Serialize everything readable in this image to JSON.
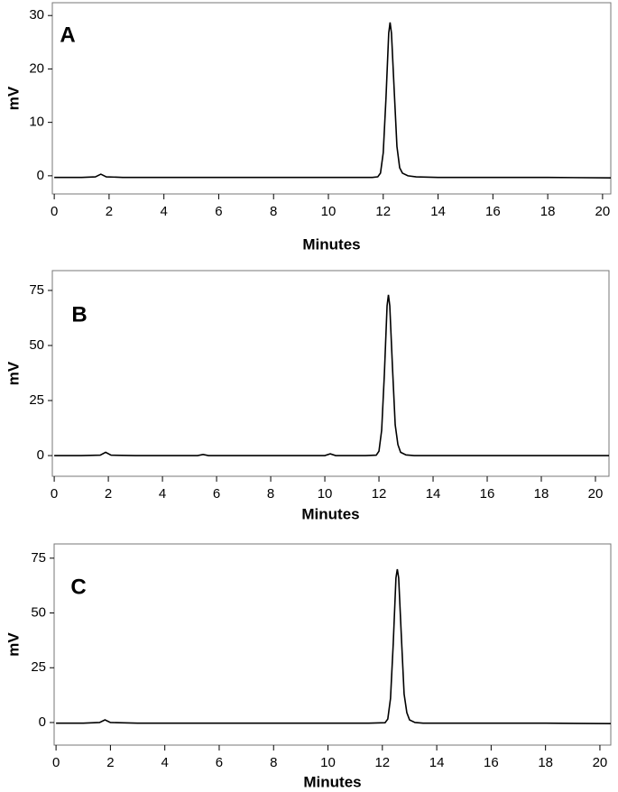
{
  "chart_data": [
    {
      "type": "line",
      "panel_label": "A",
      "x_label": "Minutes",
      "y_label": "mV",
      "color": "#000000",
      "xlim": [
        -0.07,
        20.3
      ],
      "ylim": [
        -3.4,
        32.4
      ],
      "xticks": [
        0,
        2,
        4,
        6,
        8,
        10,
        12,
        14,
        16,
        18,
        20
      ],
      "yticks": [
        0,
        10,
        20,
        30
      ],
      "x": [
        0,
        1,
        1.5,
        1.7,
        1.9,
        2.5,
        4,
        6,
        8,
        10,
        11,
        11.6,
        11.8,
        11.9,
        12.0,
        12.1,
        12.2,
        12.25,
        12.3,
        12.4,
        12.5,
        12.6,
        12.7,
        12.9,
        13.2,
        14,
        16,
        18,
        20.3
      ],
      "values": [
        -0.3,
        -0.3,
        -0.2,
        0.3,
        -0.2,
        -0.3,
        -0.3,
        -0.3,
        -0.3,
        -0.3,
        -0.3,
        -0.3,
        -0.2,
        0.5,
        4.3,
        14.5,
        26.7,
        28.7,
        26.7,
        16,
        5.5,
        1.5,
        0.5,
        0,
        -0.2,
        -0.3,
        -0.3,
        -0.3,
        -0.4
      ]
    },
    {
      "type": "line",
      "panel_label": "B",
      "x_label": "Minutes",
      "y_label": "mV",
      "color": "#000000",
      "xlim": [
        -0.07,
        20.5
      ],
      "ylim": [
        -9.4,
        84
      ],
      "xticks": [
        0,
        2,
        4,
        6,
        8,
        10,
        12,
        14,
        16,
        18,
        20
      ],
      "yticks": [
        0,
        25,
        50,
        75
      ],
      "x": [
        0,
        1,
        1.7,
        1.9,
        2.1,
        3,
        5.3,
        5.5,
        5.7,
        8,
        10,
        10.2,
        10.4,
        11.5,
        11.9,
        12.0,
        12.1,
        12.2,
        12.3,
        12.35,
        12.4,
        12.5,
        12.6,
        12.7,
        12.8,
        13.0,
        13.3,
        14,
        16,
        18,
        20.5
      ],
      "values": [
        0,
        0,
        0.2,
        1.5,
        0.2,
        0,
        0,
        0.5,
        0,
        0,
        0,
        0.8,
        0,
        0,
        0.2,
        2,
        11.5,
        37,
        68,
        73,
        68,
        40,
        14,
        5,
        1.5,
        0.3,
        0,
        0,
        0,
        0,
        0
      ]
    },
    {
      "type": "line",
      "panel_label": "C",
      "x_label": "Minutes",
      "y_label": "mV",
      "color": "#000000",
      "xlim": [
        -0.07,
        20.4
      ],
      "ylim": [
        -10.3,
        81.5
      ],
      "xticks": [
        0,
        2,
        4,
        6,
        8,
        10,
        12,
        14,
        16,
        18,
        20
      ],
      "yticks": [
        0,
        25,
        50,
        75
      ],
      "x": [
        0,
        1,
        1.6,
        1.8,
        2.0,
        3,
        6,
        8,
        10,
        11.5,
        12.1,
        12.2,
        12.3,
        12.4,
        12.5,
        12.55,
        12.6,
        12.7,
        12.8,
        12.9,
        13.0,
        13.2,
        13.5,
        14,
        16,
        18,
        20.4
      ],
      "values": [
        -0.3,
        -0.3,
        0,
        1.2,
        0,
        -0.3,
        -0.3,
        -0.3,
        -0.3,
        -0.3,
        -0.1,
        1.6,
        11,
        36,
        66,
        70,
        66,
        39,
        13,
        4.5,
        1.2,
        0,
        -0.3,
        -0.3,
        -0.3,
        -0.3,
        -0.5
      ]
    }
  ]
}
